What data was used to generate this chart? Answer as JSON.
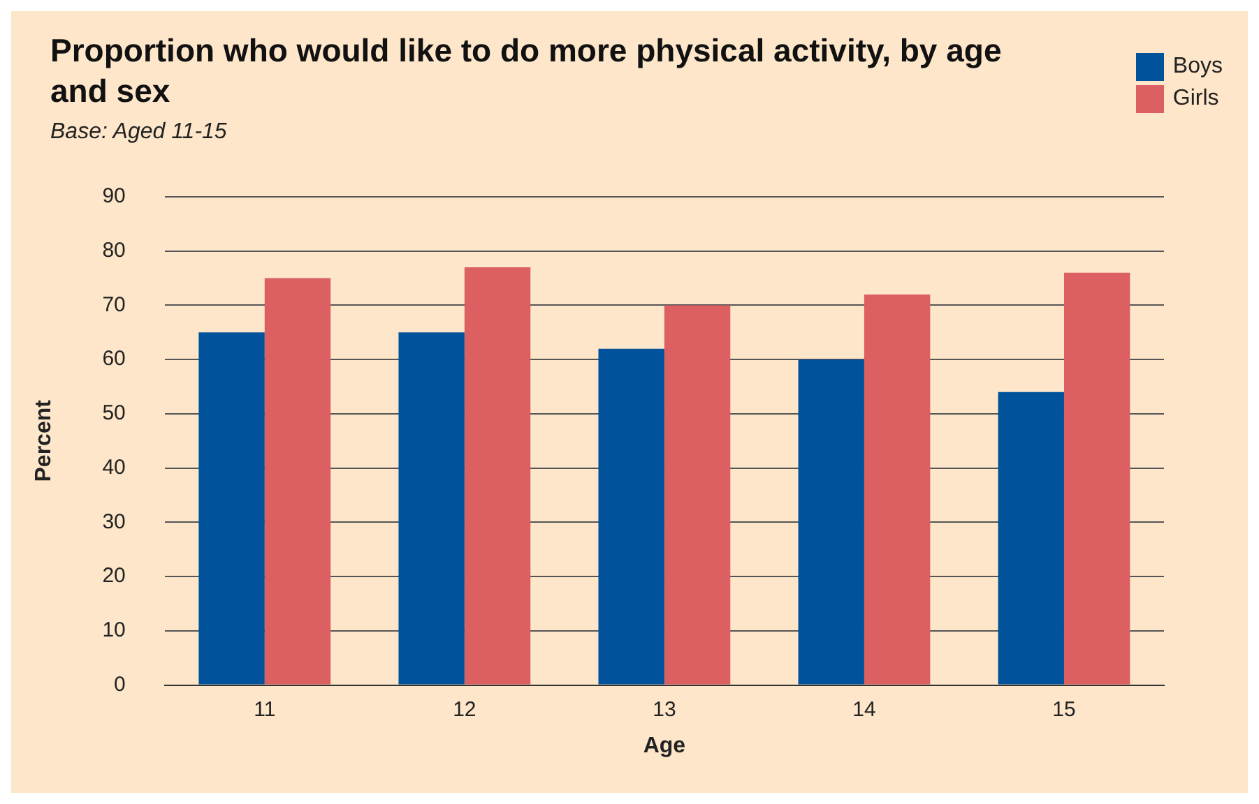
{
  "chart_data": {
    "type": "bar",
    "title": "Proportion who would like to do more physical activity, by age and sex",
    "subtitle": "Base: Aged 11-15",
    "xlabel": "Age",
    "ylabel": "Percent",
    "categories": [
      "11",
      "12",
      "13",
      "14",
      "15"
    ],
    "series": [
      {
        "name": "Boys",
        "color": "#00529b",
        "values": [
          65,
          65,
          62,
          60,
          54
        ]
      },
      {
        "name": "Girls",
        "color": "#dc5f61",
        "values": [
          75,
          77,
          70,
          72,
          76
        ]
      }
    ],
    "ylim": [
      0,
      90
    ],
    "yticks": [
      0,
      10,
      20,
      30,
      40,
      50,
      60,
      70,
      80,
      90
    ],
    "grid": "y",
    "legend": "top right"
  }
}
